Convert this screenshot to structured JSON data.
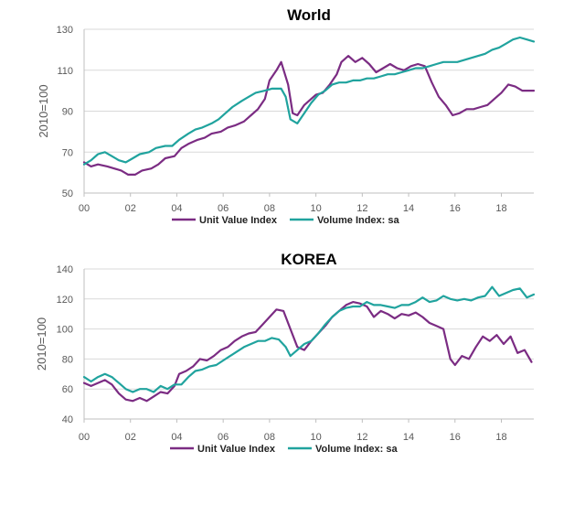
{
  "chart_data": [
    {
      "type": "line",
      "title": "World",
      "ylabel": "2010=100",
      "xlabel": "",
      "ylim": [
        50,
        130
      ],
      "yticks": [
        50,
        70,
        90,
        110,
        130
      ],
      "xlim": [
        2000,
        2019.4
      ],
      "xticks": [
        2000,
        2002,
        2004,
        2006,
        2008,
        2010,
        2012,
        2014,
        2016,
        2018
      ],
      "xtick_labels": [
        "00",
        "02",
        "04",
        "06",
        "08",
        "10",
        "12",
        "14",
        "16",
        "18"
      ],
      "grid": "horizontal",
      "legend": "bottom",
      "series": [
        {
          "name": "Unit Value Index",
          "color": "#7b2c83",
          "points": [
            [
              2000.0,
              65
            ],
            [
              2000.3,
              63
            ],
            [
              2000.6,
              64
            ],
            [
              2001.0,
              63
            ],
            [
              2001.3,
              62
            ],
            [
              2001.6,
              61
            ],
            [
              2001.9,
              59
            ],
            [
              2002.2,
              59
            ],
            [
              2002.5,
              61
            ],
            [
              2002.9,
              62
            ],
            [
              2003.2,
              64
            ],
            [
              2003.5,
              67
            ],
            [
              2003.9,
              68
            ],
            [
              2004.2,
              72
            ],
            [
              2004.5,
              74
            ],
            [
              2004.9,
              76
            ],
            [
              2005.2,
              77
            ],
            [
              2005.5,
              79
            ],
            [
              2005.9,
              80
            ],
            [
              2006.2,
              82
            ],
            [
              2006.5,
              83
            ],
            [
              2006.9,
              85
            ],
            [
              2007.2,
              88
            ],
            [
              2007.5,
              91
            ],
            [
              2007.8,
              96
            ],
            [
              2008.0,
              105
            ],
            [
              2008.3,
              110
            ],
            [
              2008.5,
              114
            ],
            [
              2008.8,
              103
            ],
            [
              2009.0,
              89
            ],
            [
              2009.2,
              88
            ],
            [
              2009.5,
              93
            ],
            [
              2009.8,
              96
            ],
            [
              2010.0,
              98
            ],
            [
              2010.3,
              99
            ],
            [
              2010.6,
              103
            ],
            [
              2010.9,
              108
            ],
            [
              2011.1,
              114
            ],
            [
              2011.4,
              117
            ],
            [
              2011.7,
              114
            ],
            [
              2012.0,
              116
            ],
            [
              2012.3,
              113
            ],
            [
              2012.6,
              109
            ],
            [
              2012.9,
              111
            ],
            [
              2013.2,
              113
            ],
            [
              2013.5,
              111
            ],
            [
              2013.8,
              110
            ],
            [
              2014.1,
              112
            ],
            [
              2014.4,
              113
            ],
            [
              2014.7,
              112
            ],
            [
              2015.0,
              104
            ],
            [
              2015.3,
              97
            ],
            [
              2015.6,
              93
            ],
            [
              2015.9,
              88
            ],
            [
              2016.2,
              89
            ],
            [
              2016.5,
              91
            ],
            [
              2016.8,
              91
            ],
            [
              2017.1,
              92
            ],
            [
              2017.4,
              93
            ],
            [
              2017.7,
              96
            ],
            [
              2018.0,
              99
            ],
            [
              2018.3,
              103
            ],
            [
              2018.6,
              102
            ],
            [
              2018.9,
              100
            ],
            [
              2019.2,
              100
            ],
            [
              2019.4,
              100
            ]
          ]
        },
        {
          "name": "Volume Index: sa",
          "color": "#20a39e",
          "points": [
            [
              2000.0,
              64
            ],
            [
              2000.3,
              66
            ],
            [
              2000.6,
              69
            ],
            [
              2000.9,
              70
            ],
            [
              2001.2,
              68
            ],
            [
              2001.5,
              66
            ],
            [
              2001.8,
              65
            ],
            [
              2002.1,
              67
            ],
            [
              2002.4,
              69
            ],
            [
              2002.8,
              70
            ],
            [
              2003.1,
              72
            ],
            [
              2003.5,
              73
            ],
            [
              2003.8,
              73
            ],
            [
              2004.1,
              76
            ],
            [
              2004.5,
              79
            ],
            [
              2004.8,
              81
            ],
            [
              2005.1,
              82
            ],
            [
              2005.5,
              84
            ],
            [
              2005.8,
              86
            ],
            [
              2006.1,
              89
            ],
            [
              2006.4,
              92
            ],
            [
              2006.8,
              95
            ],
            [
              2007.1,
              97
            ],
            [
              2007.4,
              99
            ],
            [
              2007.8,
              100
            ],
            [
              2008.1,
              101
            ],
            [
              2008.5,
              101
            ],
            [
              2008.7,
              97
            ],
            [
              2008.9,
              86
            ],
            [
              2009.2,
              84
            ],
            [
              2009.5,
              89
            ],
            [
              2009.8,
              94
            ],
            [
              2010.1,
              98
            ],
            [
              2010.4,
              100
            ],
            [
              2010.7,
              103
            ],
            [
              2011.0,
              104
            ],
            [
              2011.3,
              104
            ],
            [
              2011.6,
              105
            ],
            [
              2011.9,
              105
            ],
            [
              2012.2,
              106
            ],
            [
              2012.5,
              106
            ],
            [
              2012.8,
              107
            ],
            [
              2013.1,
              108
            ],
            [
              2013.4,
              108
            ],
            [
              2013.7,
              109
            ],
            [
              2014.0,
              110
            ],
            [
              2014.3,
              111
            ],
            [
              2014.6,
              111
            ],
            [
              2014.9,
              112
            ],
            [
              2015.2,
              113
            ],
            [
              2015.5,
              114
            ],
            [
              2015.8,
              114
            ],
            [
              2016.1,
              114
            ],
            [
              2016.4,
              115
            ],
            [
              2016.7,
              116
            ],
            [
              2017.0,
              117
            ],
            [
              2017.3,
              118
            ],
            [
              2017.6,
              120
            ],
            [
              2017.9,
              121
            ],
            [
              2018.2,
              123
            ],
            [
              2018.5,
              125
            ],
            [
              2018.8,
              126
            ],
            [
              2019.1,
              125
            ],
            [
              2019.4,
              124
            ]
          ]
        }
      ]
    },
    {
      "type": "line",
      "title": "KOREA",
      "ylabel": "2010=100",
      "xlabel": "",
      "ylim": [
        40,
        140
      ],
      "yticks": [
        40,
        60,
        80,
        100,
        120,
        140
      ],
      "xlim": [
        2000,
        2019.4
      ],
      "xticks": [
        2000,
        2002,
        2004,
        2006,
        2008,
        2010,
        2012,
        2014,
        2016,
        2018
      ],
      "xtick_labels": [
        "00",
        "02",
        "04",
        "06",
        "08",
        "10",
        "12",
        "14",
        "16",
        "18"
      ],
      "grid": "horizontal",
      "legend": "bottom",
      "series": [
        {
          "name": "Unit Value Index",
          "color": "#7b2c83",
          "points": [
            [
              2000.0,
              64
            ],
            [
              2000.3,
              62
            ],
            [
              2000.6,
              64
            ],
            [
              2000.9,
              66
            ],
            [
              2001.2,
              63
            ],
            [
              2001.5,
              57
            ],
            [
              2001.8,
              53
            ],
            [
              2002.1,
              52
            ],
            [
              2002.4,
              54
            ],
            [
              2002.7,
              52
            ],
            [
              2003.0,
              55
            ],
            [
              2003.3,
              58
            ],
            [
              2003.6,
              57
            ],
            [
              2003.9,
              62
            ],
            [
              2004.1,
              70
            ],
            [
              2004.4,
              72
            ],
            [
              2004.7,
              75
            ],
            [
              2005.0,
              80
            ],
            [
              2005.3,
              79
            ],
            [
              2005.6,
              82
            ],
            [
              2005.9,
              86
            ],
            [
              2006.2,
              88
            ],
            [
              2006.5,
              92
            ],
            [
              2006.8,
              95
            ],
            [
              2007.1,
              97
            ],
            [
              2007.4,
              98
            ],
            [
              2007.7,
              103
            ],
            [
              2008.0,
              108
            ],
            [
              2008.3,
              113
            ],
            [
              2008.6,
              112
            ],
            [
              2008.9,
              100
            ],
            [
              2009.2,
              88
            ],
            [
              2009.5,
              86
            ],
            [
              2009.8,
              92
            ],
            [
              2010.1,
              97
            ],
            [
              2010.4,
              102
            ],
            [
              2010.7,
              108
            ],
            [
              2011.0,
              112
            ],
            [
              2011.3,
              116
            ],
            [
              2011.6,
              118
            ],
            [
              2011.9,
              117
            ],
            [
              2012.2,
              115
            ],
            [
              2012.5,
              108
            ],
            [
              2012.8,
              112
            ],
            [
              2013.1,
              110
            ],
            [
              2013.4,
              107
            ],
            [
              2013.7,
              110
            ],
            [
              2014.0,
              109
            ],
            [
              2014.3,
              111
            ],
            [
              2014.6,
              108
            ],
            [
              2014.9,
              104
            ],
            [
              2015.2,
              102
            ],
            [
              2015.5,
              100
            ],
            [
              2015.8,
              80
            ],
            [
              2016.0,
              76
            ],
            [
              2016.3,
              82
            ],
            [
              2016.6,
              80
            ],
            [
              2016.9,
              88
            ],
            [
              2017.2,
              95
            ],
            [
              2017.5,
              92
            ],
            [
              2017.8,
              96
            ],
            [
              2018.1,
              90
            ],
            [
              2018.4,
              95
            ],
            [
              2018.7,
              84
            ],
            [
              2019.0,
              86
            ],
            [
              2019.3,
              78
            ]
          ]
        },
        {
          "name": "Volume Index: sa",
          "color": "#20a39e",
          "points": [
            [
              2000.0,
              68
            ],
            [
              2000.3,
              65
            ],
            [
              2000.6,
              68
            ],
            [
              2000.9,
              70
            ],
            [
              2001.2,
              68
            ],
            [
              2001.5,
              64
            ],
            [
              2001.8,
              60
            ],
            [
              2002.1,
              58
            ],
            [
              2002.4,
              60
            ],
            [
              2002.7,
              60
            ],
            [
              2003.0,
              58
            ],
            [
              2003.3,
              62
            ],
            [
              2003.6,
              60
            ],
            [
              2003.9,
              63
            ],
            [
              2004.2,
              63
            ],
            [
              2004.5,
              68
            ],
            [
              2004.8,
              72
            ],
            [
              2005.1,
              73
            ],
            [
              2005.4,
              75
            ],
            [
              2005.7,
              76
            ],
            [
              2006.0,
              79
            ],
            [
              2006.3,
              82
            ],
            [
              2006.6,
              85
            ],
            [
              2006.9,
              88
            ],
            [
              2007.2,
              90
            ],
            [
              2007.5,
              92
            ],
            [
              2007.8,
              92
            ],
            [
              2008.1,
              94
            ],
            [
              2008.4,
              93
            ],
            [
              2008.7,
              88
            ],
            [
              2008.9,
              82
            ],
            [
              2009.2,
              86
            ],
            [
              2009.5,
              90
            ],
            [
              2009.8,
              92
            ],
            [
              2010.1,
              97
            ],
            [
              2010.4,
              103
            ],
            [
              2010.7,
              108
            ],
            [
              2011.0,
              112
            ],
            [
              2011.3,
              114
            ],
            [
              2011.6,
              115
            ],
            [
              2011.9,
              115
            ],
            [
              2012.2,
              118
            ],
            [
              2012.5,
              116
            ],
            [
              2012.8,
              116
            ],
            [
              2013.1,
              115
            ],
            [
              2013.4,
              114
            ],
            [
              2013.7,
              116
            ],
            [
              2014.0,
              116
            ],
            [
              2014.3,
              118
            ],
            [
              2014.6,
              121
            ],
            [
              2014.9,
              118
            ],
            [
              2015.2,
              119
            ],
            [
              2015.5,
              122
            ],
            [
              2015.8,
              120
            ],
            [
              2016.1,
              119
            ],
            [
              2016.4,
              120
            ],
            [
              2016.7,
              119
            ],
            [
              2017.0,
              121
            ],
            [
              2017.3,
              122
            ],
            [
              2017.6,
              128
            ],
            [
              2017.9,
              122
            ],
            [
              2018.2,
              124
            ],
            [
              2018.5,
              126
            ],
            [
              2018.8,
              127
            ],
            [
              2019.1,
              121
            ],
            [
              2019.4,
              123
            ]
          ]
        }
      ]
    }
  ]
}
